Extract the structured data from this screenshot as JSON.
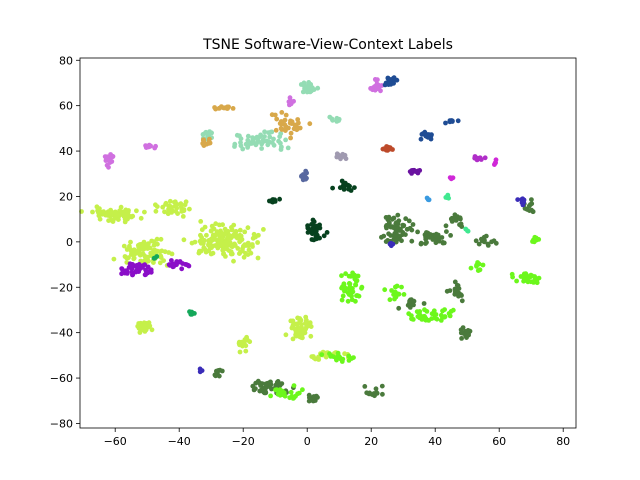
{
  "chart_data": {
    "type": "scatter",
    "title": "TSNE Software-View-Context Labels",
    "xlabel": "",
    "ylabel": "",
    "xlim": [
      -71,
      84
    ],
    "ylim": [
      -82,
      81
    ],
    "xticks": [
      -60,
      -40,
      -20,
      0,
      20,
      40,
      60,
      80
    ],
    "yticks": [
      -80,
      -60,
      -40,
      -20,
      0,
      20,
      40,
      60,
      80
    ],
    "xtick_labels": [
      "−60",
      "−40",
      "−20",
      "0",
      "20",
      "40",
      "60",
      "80"
    ],
    "ytick_labels": [
      "−80",
      "−60",
      "−40",
      "−20",
      "0",
      "20",
      "40",
      "60",
      "80"
    ],
    "grid": false,
    "legend": false,
    "clusters": [
      {
        "color": "#c5f04a",
        "center": [
          -60,
          12
        ],
        "spread": [
          8,
          3
        ],
        "n": 60
      },
      {
        "color": "#c5f04a",
        "center": [
          -42,
          15
        ],
        "spread": [
          5,
          3
        ],
        "n": 40
      },
      {
        "color": "#c5f04a",
        "center": [
          -50,
          -5
        ],
        "spread": [
          8,
          5
        ],
        "n": 80
      },
      {
        "color": "#c5f04a",
        "center": [
          -26,
          0
        ],
        "spread": [
          10,
          7
        ],
        "n": 160
      },
      {
        "color": "#c5f04a",
        "center": [
          -51,
          -38
        ],
        "spread": [
          2,
          3
        ],
        "n": 25
      },
      {
        "color": "#c5f04a",
        "center": [
          -2,
          -38
        ],
        "spread": [
          4,
          5
        ],
        "n": 55
      },
      {
        "color": "#c5f04a",
        "center": [
          -20,
          -45
        ],
        "spread": [
          2,
          3
        ],
        "n": 15
      },
      {
        "color": "#c5f04a",
        "center": [
          6,
          -50
        ],
        "spread": [
          6,
          2
        ],
        "n": 30
      },
      {
        "color": "#8a0ec8",
        "center": [
          -53,
          -12
        ],
        "spread": [
          4,
          3
        ],
        "n": 40
      },
      {
        "color": "#8a0ec8",
        "center": [
          -40,
          -10
        ],
        "spread": [
          4,
          2
        ],
        "n": 18
      },
      {
        "color": "#4a7a3c",
        "center": [
          -11,
          -64
        ],
        "spread": [
          6,
          4
        ],
        "n": 45
      },
      {
        "color": "#4a7a3c",
        "center": [
          -28,
          -58
        ],
        "spread": [
          2,
          2
        ],
        "n": 10
      },
      {
        "color": "#4a7a3c",
        "center": [
          2,
          -69
        ],
        "spread": [
          2,
          2
        ],
        "n": 12
      },
      {
        "color": "#4a7a3c",
        "center": [
          21,
          -66
        ],
        "spread": [
          3,
          3
        ],
        "n": 12
      },
      {
        "color": "#4a7a3c",
        "center": [
          28,
          5
        ],
        "spread": [
          5,
          7
        ],
        "n": 60
      },
      {
        "color": "#4a7a3c",
        "center": [
          40,
          2
        ],
        "spread": [
          5,
          3
        ],
        "n": 40
      },
      {
        "color": "#4a7a3c",
        "center": [
          46,
          10
        ],
        "spread": [
          3,
          3
        ],
        "n": 15
      },
      {
        "color": "#4a7a3c",
        "center": [
          46,
          -22
        ],
        "spread": [
          4,
          3
        ],
        "n": 20
      },
      {
        "color": "#4a7a3c",
        "center": [
          50,
          -40
        ],
        "spread": [
          2,
          2
        ],
        "n": 15
      },
      {
        "color": "#4a7a3c",
        "center": [
          70,
          15
        ],
        "spread": [
          3,
          3
        ],
        "n": 12
      },
      {
        "color": "#4a7a3c",
        "center": [
          55,
          0
        ],
        "spread": [
          4,
          3
        ],
        "n": 15
      },
      {
        "color": "#4a7a3c",
        "center": [
          33,
          -27
        ],
        "spread": [
          4,
          3
        ],
        "n": 15
      },
      {
        "color": "#6cf71c",
        "center": [
          14,
          -20
        ],
        "spread": [
          3,
          6
        ],
        "n": 45
      },
      {
        "color": "#6cf71c",
        "center": [
          39,
          -32
        ],
        "spread": [
          8,
          3
        ],
        "n": 40
      },
      {
        "color": "#6cf71c",
        "center": [
          69,
          -16
        ],
        "spread": [
          4,
          2
        ],
        "n": 30
      },
      {
        "color": "#6cf71c",
        "center": [
          71,
          1
        ],
        "spread": [
          2,
          2
        ],
        "n": 10
      },
      {
        "color": "#6cf71c",
        "center": [
          -7,
          -67
        ],
        "spread": [
          6,
          3
        ],
        "n": 25
      },
      {
        "color": "#6cf71c",
        "center": [
          9,
          -51
        ],
        "spread": [
          5,
          2
        ],
        "n": 20
      },
      {
        "color": "#6cf71c",
        "center": [
          53,
          -11
        ],
        "spread": [
          2,
          2
        ],
        "n": 8
      },
      {
        "color": "#6cf71c",
        "center": [
          28,
          -22
        ],
        "spread": [
          3,
          4
        ],
        "n": 15
      },
      {
        "color": "#06411e",
        "center": [
          2,
          5
        ],
        "spread": [
          3,
          5
        ],
        "n": 35
      },
      {
        "color": "#06411e",
        "center": [
          12,
          24
        ],
        "spread": [
          3,
          2
        ],
        "n": 15
      },
      {
        "color": "#06411e",
        "center": [
          -10,
          18
        ],
        "spread": [
          2,
          1
        ],
        "n": 10
      },
      {
        "color": "#94dcb4",
        "center": [
          -15,
          45
        ],
        "spread": [
          9,
          4
        ],
        "n": 55
      },
      {
        "color": "#94dcb4",
        "center": [
          0,
          68
        ],
        "spread": [
          3,
          3
        ],
        "n": 25
      },
      {
        "color": "#94dcb4",
        "center": [
          -31,
          47
        ],
        "spread": [
          2,
          2
        ],
        "n": 12
      },
      {
        "color": "#94dcb4",
        "center": [
          9,
          54
        ],
        "spread": [
          2,
          1
        ],
        "n": 8
      },
      {
        "color": "#d8a84a",
        "center": [
          -26,
          59
        ],
        "spread": [
          3,
          1
        ],
        "n": 15
      },
      {
        "color": "#d8a84a",
        "center": [
          -32,
          44
        ],
        "spread": [
          2,
          2
        ],
        "n": 12
      },
      {
        "color": "#d8a84a",
        "center": [
          -6,
          52
        ],
        "spread": [
          5,
          5
        ],
        "n": 35
      },
      {
        "color": "#d070e0",
        "center": [
          -62,
          36
        ],
        "spread": [
          2,
          3
        ],
        "n": 20
      },
      {
        "color": "#d070e0",
        "center": [
          -49,
          42
        ],
        "spread": [
          2,
          1
        ],
        "n": 8
      },
      {
        "color": "#d070e0",
        "center": [
          22,
          69
        ],
        "spread": [
          2,
          3
        ],
        "n": 18
      },
      {
        "color": "#d070e0",
        "center": [
          -5,
          62
        ],
        "spread": [
          2,
          2
        ],
        "n": 8
      },
      {
        "color": "#1f4c94",
        "center": [
          26,
          71
        ],
        "spread": [
          2,
          2
        ],
        "n": 15
      },
      {
        "color": "#1f4c94",
        "center": [
          37,
          47
        ],
        "spread": [
          2,
          2
        ],
        "n": 15
      },
      {
        "color": "#1f4c94",
        "center": [
          45,
          53
        ],
        "spread": [
          2,
          1
        ],
        "n": 8
      },
      {
        "color": "#bd4a2a",
        "center": [
          25,
          41
        ],
        "spread": [
          2,
          1
        ],
        "n": 12
      },
      {
        "color": "#5868a0",
        "center": [
          -1,
          29
        ],
        "spread": [
          1,
          2
        ],
        "n": 10
      },
      {
        "color": "#a09ab0",
        "center": [
          11,
          38
        ],
        "spread": [
          2,
          2
        ],
        "n": 10
      },
      {
        "color": "#6a12a0",
        "center": [
          34,
          31
        ],
        "spread": [
          2,
          1
        ],
        "n": 10
      },
      {
        "color": "#b02ec8",
        "center": [
          53,
          37
        ],
        "spread": [
          2,
          1
        ],
        "n": 12
      },
      {
        "color": "#d028d8",
        "center": [
          59,
          35
        ],
        "spread": [
          1,
          1
        ],
        "n": 4
      },
      {
        "color": "#d028d8",
        "center": [
          45,
          28
        ],
        "spread": [
          1,
          1
        ],
        "n": 4
      },
      {
        "color": "#3a2cb8",
        "center": [
          67,
          18
        ],
        "spread": [
          2,
          2
        ],
        "n": 8
      },
      {
        "color": "#3a2cb8",
        "center": [
          -33,
          -57
        ],
        "spread": [
          1,
          1
        ],
        "n": 4
      },
      {
        "color": "#3a2cb8",
        "center": [
          26,
          -1
        ],
        "spread": [
          1,
          1
        ],
        "n": 4
      },
      {
        "color": "#14a85a",
        "center": [
          -36,
          -31
        ],
        "spread": [
          2,
          2
        ],
        "n": 6
      },
      {
        "color": "#14a85a",
        "center": [
          -48,
          -7
        ],
        "spread": [
          1,
          1
        ],
        "n": 3
      },
      {
        "color": "#40e890",
        "center": [
          44,
          20
        ],
        "spread": [
          1,
          1
        ],
        "n": 4
      },
      {
        "color": "#40e890",
        "center": [
          50,
          5
        ],
        "spread": [
          1,
          1
        ],
        "n": 3
      },
      {
        "color": "#3a9ae0",
        "center": [
          38,
          19
        ],
        "spread": [
          1,
          1
        ],
        "n": 3
      }
    ]
  }
}
